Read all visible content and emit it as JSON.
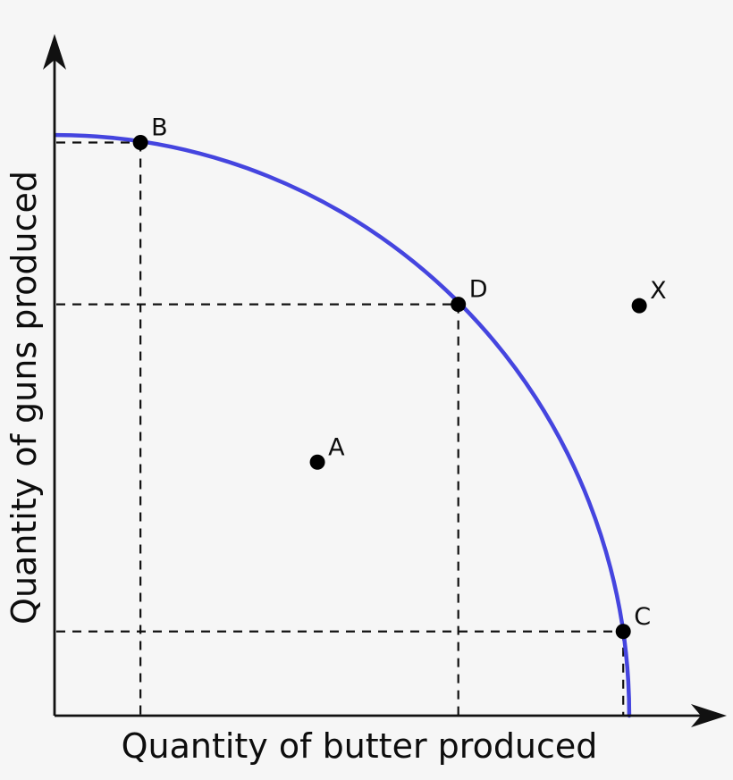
{
  "page": {
    "background": "#f6f6f6",
    "description": "Production possibilities frontier diagram for guns vs butter"
  },
  "chart_data": {
    "type": "line",
    "title": "",
    "xlabel": "Quantity of butter produced",
    "ylabel": "Quantity of guns produced",
    "xlim": [
      0,
      100
    ],
    "ylim": [
      0,
      100
    ],
    "grid": false,
    "axis_tick_labels": "none",
    "legend": "none",
    "curve": {
      "name": "production-possibilities-frontier",
      "shape": "concave quarter-ellipse bowed outward from origin",
      "color": "#4545df",
      "x_intercept": 85.8,
      "y_intercept": 85.6
    },
    "points": [
      {
        "label": "B",
        "x": 12.6,
        "y": 84.5,
        "on_curve": true,
        "dashed_guides": true
      },
      {
        "label": "D",
        "x": 60.2,
        "y": 60.6,
        "on_curve": true,
        "dashed_guides": true
      },
      {
        "label": "C",
        "x": 84.9,
        "y": 12.3,
        "on_curve": true,
        "dashed_guides": true
      },
      {
        "label": "A",
        "x": 39.1,
        "y": 37.3,
        "on_curve": false,
        "dashed_guides": false
      },
      {
        "label": "X",
        "x": 87.3,
        "y": 60.4,
        "on_curve": false,
        "dashed_guides": false
      }
    ],
    "styles": {
      "point_color": "#000000",
      "point_radius": 8.5,
      "axis_color": "#111111",
      "guide_color": "#111111",
      "guide_dash": [
        10,
        8
      ]
    }
  }
}
